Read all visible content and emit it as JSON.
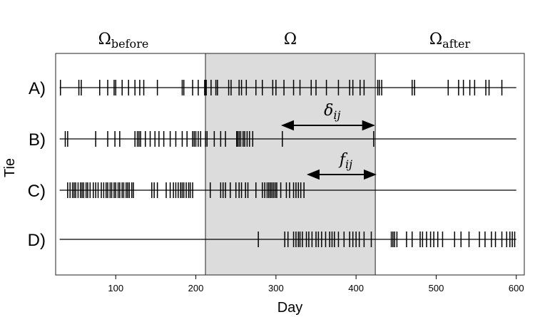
{
  "chart_data": {
    "type": "scatter",
    "xlabel": "Day",
    "ylabel": "Tie",
    "xlim": [
      25,
      610
    ],
    "xticks": [
      100,
      200,
      300,
      400,
      500,
      600
    ],
    "regions": {
      "before": {
        "base": "Ω",
        "sub": "before"
      },
      "omega": {
        "base": "Ω",
        "sub": ""
      },
      "after": {
        "base": "Ω",
        "sub": "after"
      },
      "window": [
        212,
        424
      ]
    },
    "annotations": [
      {
        "base": "δ",
        "sub": "ij",
        "row": "B)",
        "from": 308,
        "to": 422
      },
      {
        "base": "f",
        "sub": "ij",
        "row": "C)",
        "from": 340,
        "to": 424
      }
    ],
    "series": [
      {
        "label": "A)",
        "events": [
          31,
          54,
          57,
          80,
          90,
          98,
          100,
          108,
          116,
          124,
          130,
          135,
          152,
          183,
          185,
          196,
          203,
          211,
          213,
          219,
          225,
          227,
          241,
          244,
          254,
          257,
          263,
          275,
          283,
          296,
          300,
          310,
          322,
          330,
          344,
          350,
          363,
          378,
          392,
          396,
          405,
          410,
          427,
          429,
          432,
          470,
          473,
          515,
          528,
          534,
          542,
          548,
          562,
          566,
          582
        ]
      },
      {
        "label": "B)",
        "events": [
          37,
          40,
          75,
          90,
          99,
          105,
          124,
          127,
          129,
          131,
          137,
          143,
          149,
          154,
          160,
          168,
          175,
          183,
          189,
          196,
          198,
          200,
          203,
          206,
          212,
          214,
          223,
          231,
          237,
          251,
          252,
          254,
          256,
          259,
          261,
          264,
          267,
          271,
          308,
          422
        ]
      },
      {
        "label": "C)",
        "events": [
          40,
          43,
          46,
          48,
          50,
          53,
          56,
          58,
          60,
          63,
          65,
          68,
          72,
          75,
          78,
          82,
          85,
          88,
          90,
          93,
          95,
          98,
          100,
          103,
          105,
          108,
          110,
          113,
          115,
          117,
          120,
          122,
          145,
          148,
          152,
          163,
          168,
          172,
          175,
          178,
          181,
          183,
          185,
          188,
          191,
          193,
          196,
          218,
          231,
          234,
          237,
          243,
          250,
          254,
          257,
          262,
          265,
          275,
          283,
          286,
          289,
          291,
          293,
          295,
          297,
          299,
          301,
          306,
          313,
          317,
          322,
          325,
          328,
          331,
          335
        ]
      },
      {
        "label": "D)",
        "events": [
          278,
          311,
          315,
          322,
          325,
          328,
          330,
          333,
          338,
          341,
          345,
          350,
          353,
          357,
          362,
          367,
          370,
          373,
          378,
          385,
          392,
          396,
          400,
          404,
          410,
          419,
          444,
          446,
          448,
          451,
          463,
          470,
          480,
          483,
          488,
          493,
          497,
          502,
          508,
          523,
          531,
          541,
          554,
          561,
          569,
          574,
          582,
          588,
          592,
          595,
          598
        ]
      }
    ]
  }
}
